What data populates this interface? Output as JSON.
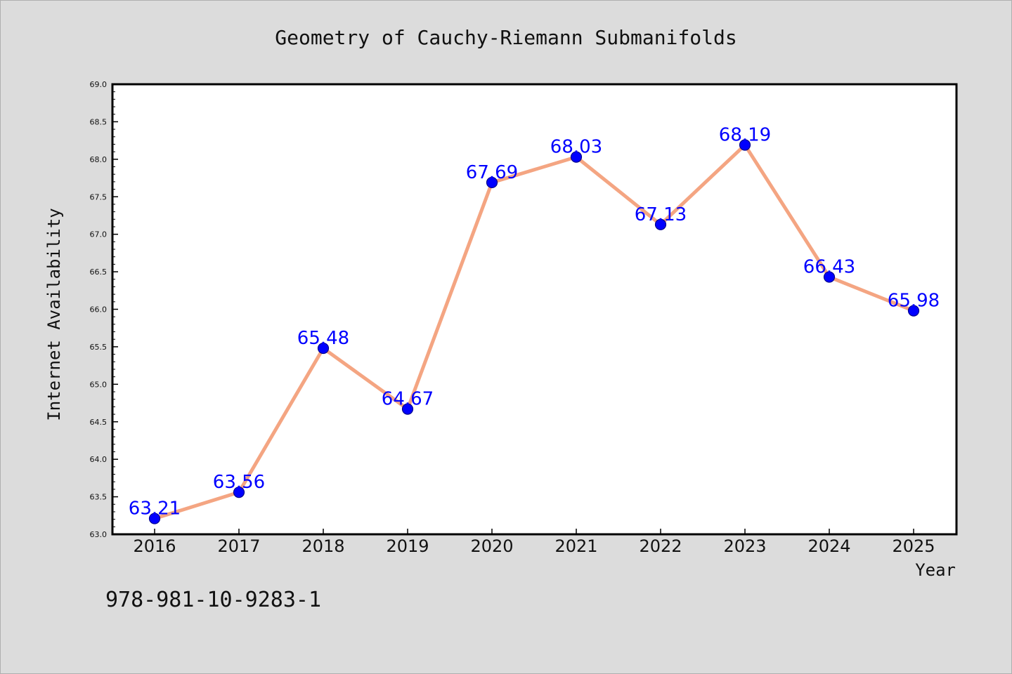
{
  "chart_data": {
    "type": "line",
    "title": "Geometry of Cauchy-Riemann Submanifolds",
    "xlabel": "Year",
    "ylabel": "Internet Availability",
    "categories": [
      "2016",
      "2017",
      "2018",
      "2019",
      "2020",
      "2021",
      "2022",
      "2023",
      "2024",
      "2025"
    ],
    "values": [
      63.21,
      63.56,
      65.48,
      64.67,
      67.69,
      68.03,
      67.13,
      68.19,
      66.43,
      65.98
    ],
    "ylim": [
      63.0,
      69.0
    ],
    "yticks": [
      "63.0",
      "63.5",
      "64.0",
      "64.5",
      "65.0",
      "65.5",
      "66.0",
      "66.5",
      "67.0",
      "67.5",
      "68.0",
      "68.5",
      "69.0"
    ],
    "grid": false,
    "line_color": "#f4a582",
    "marker_color": "#0000ff",
    "label_color": "#0000ff"
  },
  "footer_text": "978-981-10-9283-1"
}
